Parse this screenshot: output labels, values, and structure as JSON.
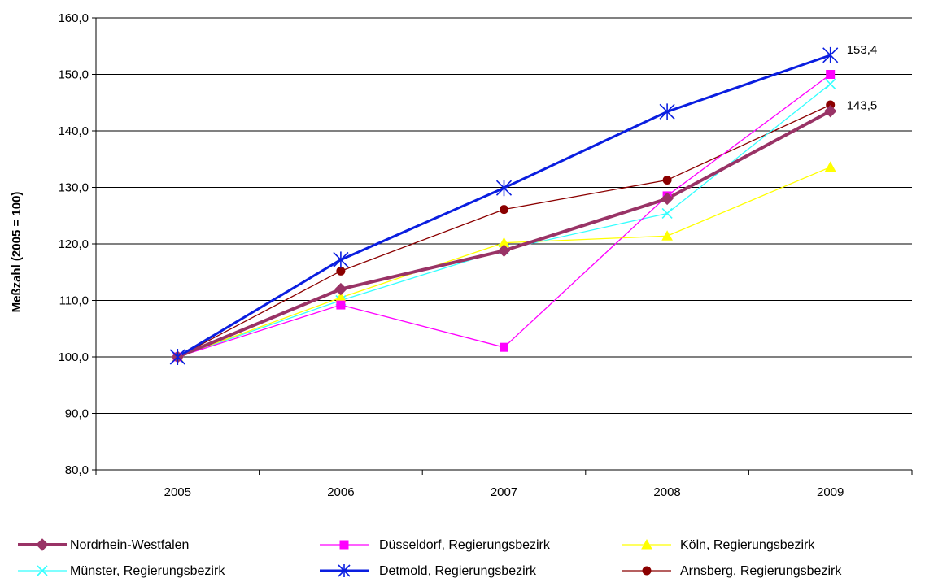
{
  "chart_data": {
    "type": "line",
    "ylabel": "Meßzahl (2005 = 100)",
    "xlabel": "",
    "categories": [
      "2005",
      "2006",
      "2007",
      "2008",
      "2009"
    ],
    "ylim": [
      80,
      160
    ],
    "ytick_step": 10,
    "ytick_labels": [
      "80,0",
      "90,0",
      "100,0",
      "110,0",
      "120,0",
      "130,0",
      "140,0",
      "150,0",
      "160,0"
    ],
    "grid": "horizontal",
    "legend_position": "bottom",
    "annotations": [
      {
        "series_index": 4,
        "point_index": 4,
        "text": "153,4"
      },
      {
        "series_index": 0,
        "point_index": 4,
        "text": "143,5"
      }
    ],
    "series": [
      {
        "name": "Nordrhein-Westfalen",
        "values": [
          100.0,
          112.0,
          118.8,
          128.0,
          143.5
        ],
        "color": "#993366",
        "marker": "diamond",
        "width": 4
      },
      {
        "name": "Düsseldorf, Regierungsbezirk",
        "values": [
          100.0,
          109.2,
          101.7,
          128.5,
          150.0
        ],
        "color": "#FF00FF",
        "marker": "square",
        "width": 1.3
      },
      {
        "name": "Köln, Regierungsbezirk",
        "values": [
          100.0,
          110.5,
          120.2,
          121.4,
          133.6
        ],
        "color": "#FFFF00",
        "marker": "triangle",
        "width": 1.3
      },
      {
        "name": "Münster, Regierungsbezirk",
        "values": [
          100.0,
          110.0,
          119.0,
          125.4,
          148.3
        ],
        "color": "#33FFFF",
        "marker": "x",
        "width": 1.3
      },
      {
        "name": "Detmold, Regierungsbezirk",
        "values": [
          100.0,
          117.2,
          129.9,
          143.4,
          153.4
        ],
        "color": "#0A1EE0",
        "marker": "star",
        "width": 3
      },
      {
        "name": "Arnsberg, Regierungsbezirk",
        "values": [
          100.0,
          115.2,
          126.1,
          131.3,
          144.6
        ],
        "color": "#8B0000",
        "marker": "circle",
        "width": 1.3
      }
    ]
  }
}
